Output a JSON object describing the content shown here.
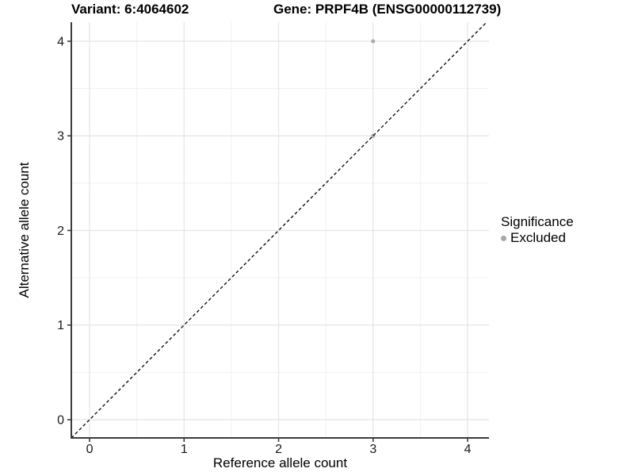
{
  "titles": {
    "variant": "Variant: 6:4064602",
    "gene": "Gene: PRPF4B (ENSG00000112739)"
  },
  "chart_data": {
    "type": "scatter",
    "xlabel": "Reference allele count",
    "ylabel": "Alternative allele count",
    "xlim": [
      -0.193,
      4.226
    ],
    "ylim": [
      -0.193,
      4.201
    ],
    "xticks": [
      0,
      1,
      2,
      3,
      4
    ],
    "yticks": [
      0,
      1,
      2,
      3,
      4
    ],
    "minor_xticks": [
      0.5,
      1.5,
      2.5,
      3.5
    ],
    "minor_yticks": [
      0.5,
      1.5,
      2.5,
      3.5
    ],
    "grid": true,
    "points": [
      {
        "x": 3,
        "y": 4,
        "significance": "Excluded"
      },
      {
        "x": 3,
        "y": 3,
        "significance": "Excluded"
      }
    ],
    "identity_line": {
      "slope": 1,
      "intercept": 0,
      "style": "dashed",
      "color": "#000000"
    },
    "legend": {
      "title": "Significance",
      "position": "right",
      "entries": [
        {
          "label": "Excluded",
          "color": "#A8A8A8"
        }
      ]
    },
    "colors": {
      "point": "#A8A8A8",
      "grid_major": "#E4E4E4",
      "grid_minor": "#F1F1F1",
      "axis": "#3C3C3C",
      "tick_text": "#1A1A1A",
      "background": "#FFFFFF"
    }
  }
}
